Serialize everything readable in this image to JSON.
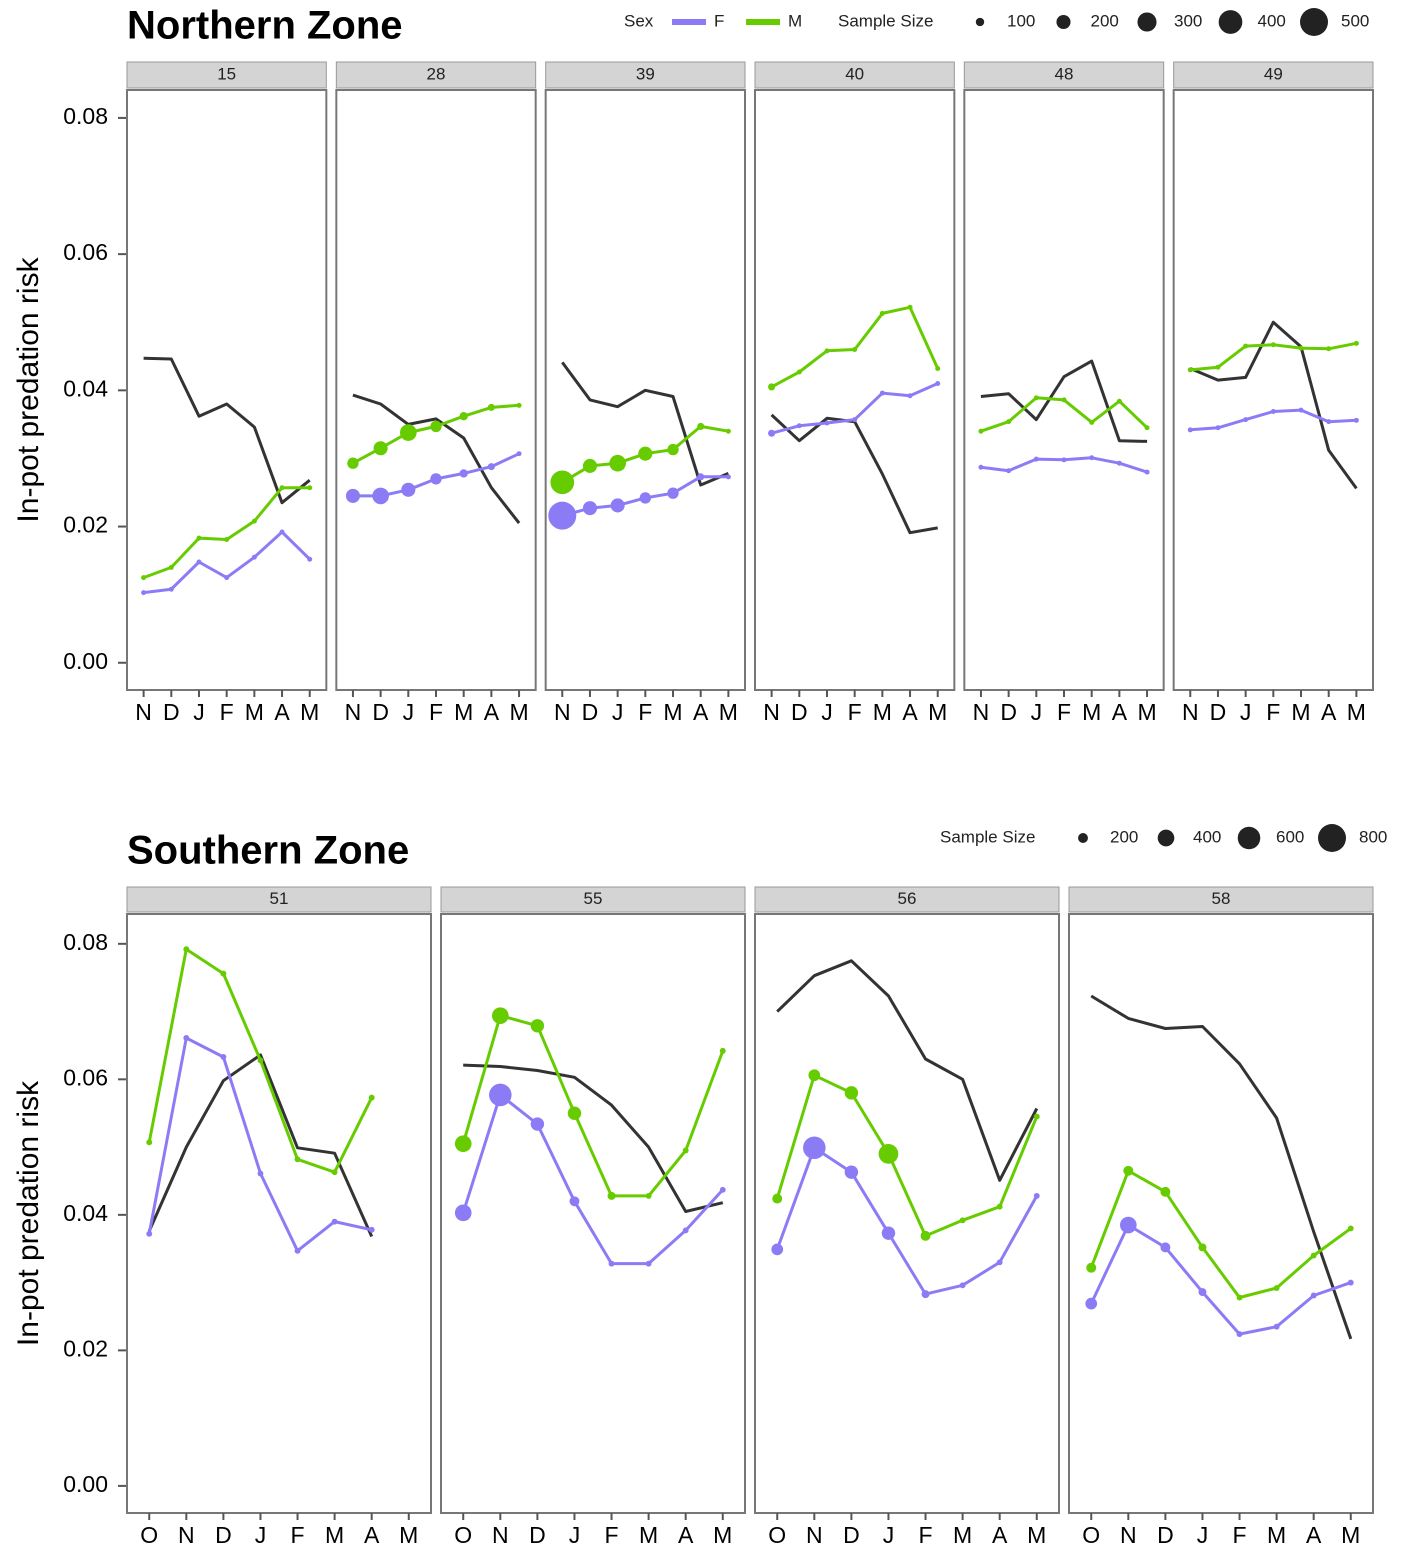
{
  "chart_data": [
    {
      "type": "line",
      "title": "Northern Zone",
      "y_label": "In-pot predation risk",
      "categories": [
        "N",
        "D",
        "J",
        "F",
        "M",
        "A",
        "M"
      ],
      "ylim": [
        -0.004,
        0.0841
      ],
      "yticks": [
        {
          "value": 0,
          "label": "0.00"
        },
        {
          "value": 0.02,
          "label": "0.02"
        },
        {
          "value": 0.04,
          "label": "0.04"
        },
        {
          "value": 0.06,
          "label": "0.06"
        },
        {
          "value": 0.08,
          "label": "0.08"
        }
      ],
      "grid": false,
      "legend_title": "Sex",
      "size_legend": {
        "title": "Sample Size",
        "values": [
          100,
          200,
          300,
          400,
          500
        ]
      },
      "series": [
        {
          "name": "F",
          "color": "#8b7cf6"
        },
        {
          "name": "M",
          "color": "#66cc00"
        },
        {
          "color": "#333333"
        }
      ],
      "panels": [
        {
          "label": "15",
          "series": [
            {
              "values": [
                0.0103,
                0.0108,
                0.0148,
                0.0125,
                0.0155,
                0.0192,
                0.0152
              ],
              "sizes": [
                50,
                50,
                50,
                50,
                50,
                50,
                50
              ]
            },
            {
              "values": [
                0.0125,
                0.014,
                0.0183,
                0.0181,
                0.0208,
                0.0257,
                0.0257
              ],
              "sizes": [
                50,
                50,
                50,
                50,
                50,
                50,
                50
              ]
            },
            {
              "values": [
                0.0447,
                0.0446,
                0.0362,
                0.038,
                0.0346,
                0.0235,
                0.0268
              ]
            }
          ]
        },
        {
          "label": "28",
          "series": [
            {
              "values": [
                0.0245,
                0.0245,
                0.0254,
                0.027,
                0.0278,
                0.0288,
                0.0307
              ],
              "sizes": [
                200,
                250,
                200,
                150,
                100,
                80,
                50
              ]
            },
            {
              "values": [
                0.0293,
                0.0315,
                0.0338,
                0.0347,
                0.0362,
                0.0375,
                0.0378
              ],
              "sizes": [
                150,
                200,
                250,
                150,
                100,
                80,
                50
              ]
            },
            {
              "values": [
                0.0393,
                0.038,
                0.035,
                0.0358,
                0.033,
                0.0257,
                0.0205
              ]
            }
          ]
        },
        {
          "label": "39",
          "series": [
            {
              "values": [
                0.0216,
                0.0227,
                0.0231,
                0.0242,
                0.0249,
                0.0273,
                0.0273
              ],
              "sizes": [
                500,
                200,
                200,
                150,
                150,
                80,
                50
              ]
            },
            {
              "values": [
                0.0265,
                0.0289,
                0.0293,
                0.0307,
                0.0313,
                0.0347,
                0.034
              ],
              "sizes": [
                400,
                200,
                250,
                200,
                150,
                80,
                50
              ]
            },
            {
              "values": [
                0.0441,
                0.0386,
                0.0376,
                0.04,
                0.0391,
                0.0261,
                0.0278
              ]
            }
          ]
        },
        {
          "label": "40",
          "series": [
            {
              "values": [
                0.0337,
                0.0348,
                0.0352,
                0.0357,
                0.0396,
                0.0392,
                0.041
              ],
              "sizes": [
                80,
                50,
                50,
                50,
                50,
                50,
                50
              ]
            },
            {
              "values": [
                0.0405,
                0.0427,
                0.0458,
                0.046,
                0.0513,
                0.0522,
                0.0432
              ],
              "sizes": [
                80,
                50,
                50,
                50,
                50,
                50,
                50
              ]
            },
            {
              "values": [
                0.0364,
                0.0326,
                0.0359,
                0.0354,
                0.0277,
                0.0191,
                0.0198
              ]
            }
          ]
        },
        {
          "label": "48",
          "series": [
            {
              "values": [
                0.0287,
                0.0282,
                0.0299,
                0.0298,
                0.0301,
                0.0293,
                0.028
              ],
              "sizes": [
                50,
                50,
                50,
                50,
                50,
                50,
                50
              ]
            },
            {
              "values": [
                0.034,
                0.0354,
                0.0389,
                0.0386,
                0.0353,
                0.0384,
                0.0345
              ],
              "sizes": [
                50,
                50,
                50,
                50,
                50,
                50,
                50
              ]
            },
            {
              "values": [
                0.0391,
                0.0395,
                0.0357,
                0.042,
                0.0443,
                0.0326,
                0.0325
              ]
            }
          ]
        },
        {
          "label": "49",
          "series": [
            {
              "values": [
                0.0342,
                0.0345,
                0.0357,
                0.0369,
                0.0371,
                0.0354,
                0.0356
              ],
              "sizes": [
                50,
                50,
                50,
                50,
                50,
                50,
                50
              ]
            },
            {
              "values": [
                0.043,
                0.0434,
                0.0465,
                0.0467,
                0.0462,
                0.0461,
                0.0469
              ],
              "sizes": [
                50,
                50,
                50,
                50,
                50,
                50,
                50
              ]
            },
            {
              "values": [
                0.0432,
                0.0415,
                0.0419,
                0.05,
                0.0464,
                0.0312,
                0.0256
              ]
            }
          ]
        }
      ]
    },
    {
      "type": "line",
      "title": "Southern Zone",
      "y_label": "In-pot predation risk",
      "categories": [
        "O",
        "N",
        "D",
        "J",
        "F",
        "M",
        "A",
        "M"
      ],
      "ylim": [
        -0.004,
        0.0844
      ],
      "yticks": [
        {
          "value": 0,
          "label": "0.00"
        },
        {
          "value": 0.02,
          "label": "0.02"
        },
        {
          "value": 0.04,
          "label": "0.04"
        },
        {
          "value": 0.06,
          "label": "0.06"
        },
        {
          "value": 0.08,
          "label": "0.08"
        }
      ],
      "grid": false,
      "size_legend": {
        "title": "Sample Size",
        "values": [
          200,
          400,
          600,
          800
        ]
      },
      "series": [
        {
          "color": "#8b7cf6"
        },
        {
          "color": "#66cc00"
        },
        {
          "color": "#333333"
        }
      ],
      "panels": [
        {
          "label": "51",
          "series": [
            {
              "values": [
                0.0372,
                0.0661,
                0.0633,
                0.0461,
                0.0347,
                0.039,
                0.0378,
                null
              ],
              "sizes": [
                100,
                100,
                100,
                100,
                100,
                100,
                100,
                null
              ]
            },
            {
              "values": [
                0.0507,
                0.0792,
                0.0756,
                0.0628,
                0.0482,
                0.0463,
                0.0573,
                null
              ],
              "sizes": [
                100,
                100,
                100,
                100,
                100,
                100,
                100,
                null
              ]
            },
            {
              "values": [
                0.0376,
                0.05,
                0.0598,
                0.0636,
                0.0499,
                0.0491,
                0.0368,
                null
              ]
            }
          ]
        },
        {
          "label": "55",
          "series": [
            {
              "values": [
                0.0403,
                0.0577,
                0.0534,
                0.042,
                0.0328,
                0.0328,
                0.0377,
                0.0437
              ],
              "sizes": [
                400,
                600,
                300,
                200,
                100,
                100,
                100,
                100
              ]
            },
            {
              "values": [
                0.0505,
                0.0694,
                0.0679,
                0.055,
                0.0428,
                0.0428,
                0.0495,
                0.0642
              ],
              "sizes": [
                400,
                400,
                300,
                300,
                150,
                100,
                100,
                100
              ]
            },
            {
              "values": [
                0.0621,
                0.0619,
                0.0613,
                0.0603,
                0.0562,
                0.05,
                0.0405,
                0.0418
              ]
            }
          ]
        },
        {
          "label": "56",
          "series": [
            {
              "values": [
                0.0349,
                0.0499,
                0.0463,
                0.0373,
                0.0283,
                0.0296,
                0.033,
                0.0428
              ],
              "sizes": [
                250,
                600,
                300,
                300,
                150,
                100,
                100,
                100
              ]
            },
            {
              "values": [
                0.0424,
                0.0606,
                0.058,
                0.049,
                0.0369,
                0.0392,
                0.0412,
                0.0545
              ],
              "sizes": [
                200,
                250,
                300,
                500,
                200,
                100,
                100,
                100
              ]
            },
            {
              "values": [
                0.07,
                0.0753,
                0.0775,
                0.0723,
                0.063,
                0.06,
                0.0451,
                0.0557
              ]
            }
          ]
        },
        {
          "label": "58",
          "series": [
            {
              "values": [
                0.0269,
                0.0385,
                0.0352,
                0.0286,
                0.0224,
                0.0235,
                0.0281,
                0.03
              ],
              "sizes": [
                250,
                400,
                200,
                150,
                100,
                100,
                100,
                100
              ]
            },
            {
              "values": [
                0.0322,
                0.0465,
                0.0434,
                0.0352,
                0.0278,
                0.0292,
                0.034,
                0.038
              ],
              "sizes": [
                200,
                200,
                200,
                150,
                100,
                100,
                100,
                100
              ]
            },
            {
              "values": [
                0.0723,
                0.069,
                0.0675,
                0.0678,
                0.0623,
                0.0543,
                0.0375,
                0.0217
              ]
            }
          ]
        }
      ]
    }
  ]
}
